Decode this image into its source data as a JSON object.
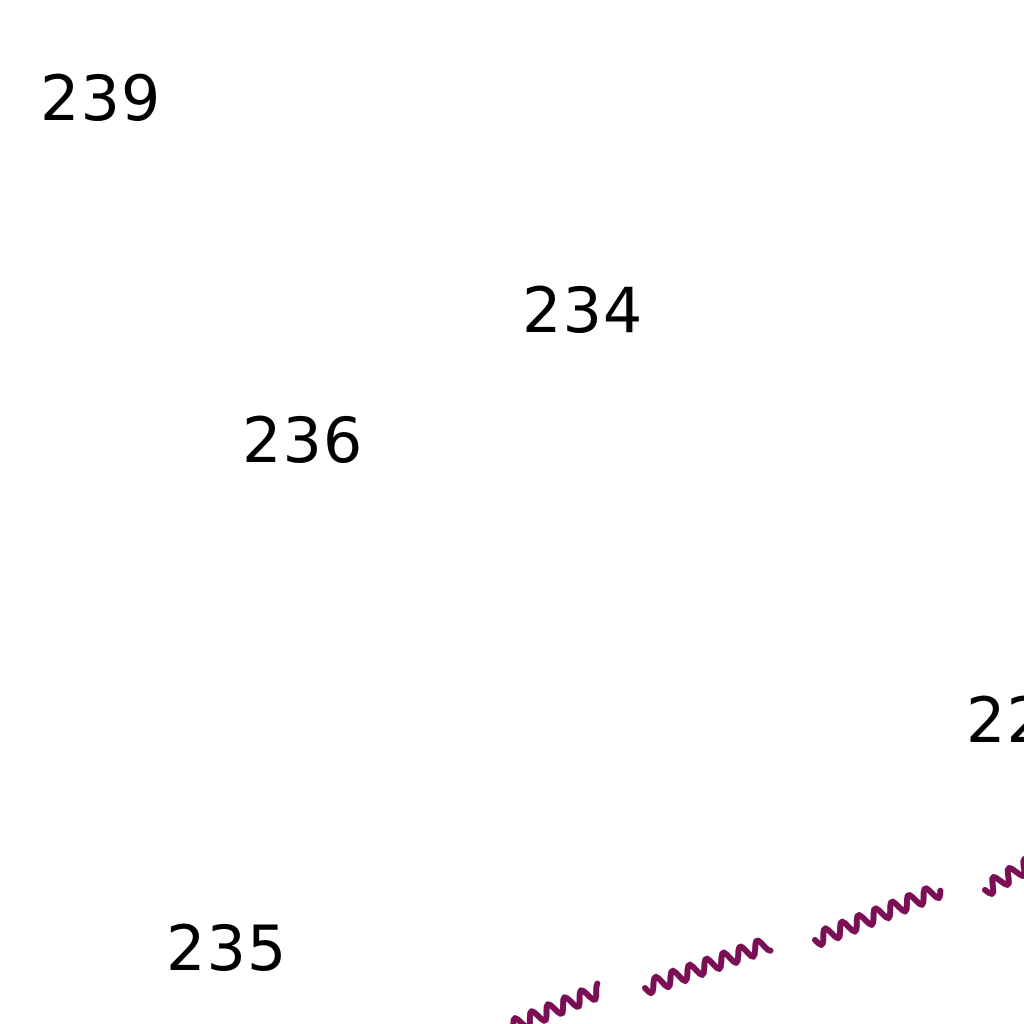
{
  "map": {
    "background_color": "#ffffff",
    "label_color": "#000000",
    "line_color": "#7a0f55",
    "line_symbol": "wavy-line",
    "soundings": [
      {
        "value": "239"
      },
      {
        "value": "234"
      },
      {
        "value": "236"
      },
      {
        "value": "22"
      },
      {
        "value": "235"
      }
    ]
  }
}
